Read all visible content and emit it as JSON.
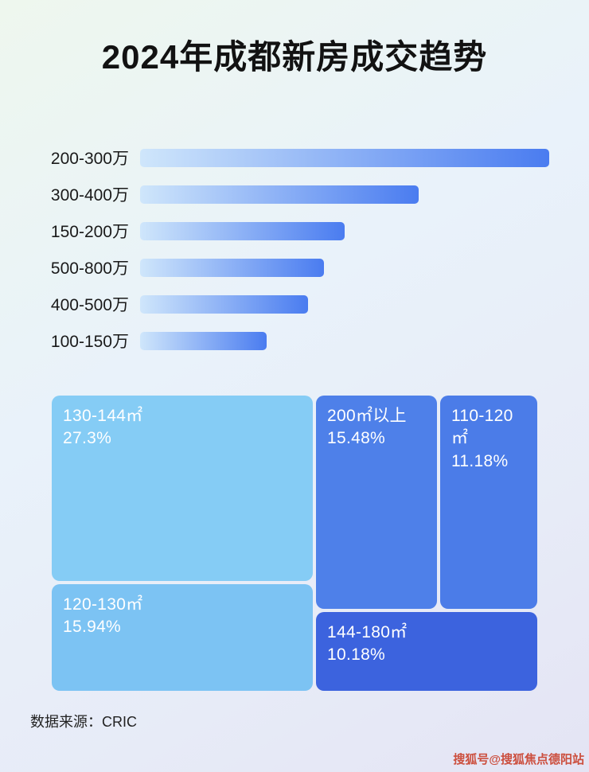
{
  "page": {
    "title": "2024年成都新房成交趋势",
    "source": "数据来源：CRIC",
    "watermark": "搜狐号@搜狐焦点德阳站"
  },
  "colors": {
    "title_text": "#121212",
    "bar_gradient_start": "#cfe6fb",
    "bar_gradient_end": "#4a7cf0",
    "watermark_red": "#cc4f3e"
  },
  "chart_data": [
    {
      "type": "bar",
      "orientation": "horizontal",
      "title": "2024年成都新房成交趋势",
      "xlabel": "",
      "ylabel": "",
      "axis_shown": false,
      "grid": false,
      "categories": [
        "200-300万",
        "300-400万",
        "150-200万",
        "500-800万",
        "400-500万",
        "100-150万"
      ],
      "values": [
        100,
        68,
        50,
        45,
        41,
        31
      ],
      "value_unit": "relative bar length (no axis labels shown)",
      "bar_gradient": [
        "#cfe6fb",
        "#4a7cf0"
      ]
    },
    {
      "type": "treemap",
      "title": "",
      "legend": false,
      "items": [
        {
          "label": "130-144㎡",
          "value": 27.3,
          "display": "27.3%",
          "color": "#85ccf5"
        },
        {
          "label": "200㎡以上",
          "value": 15.48,
          "display": "15.48%",
          "color": "#4e80e9"
        },
        {
          "label": "110-120㎡",
          "value": 11.18,
          "display": "11.18%",
          "color": "#4b7ce8"
        },
        {
          "label": "120-130㎡",
          "value": 15.94,
          "display": "15.94%",
          "color": "#7cc3f3"
        },
        {
          "label": "144-180㎡",
          "value": 10.18,
          "display": "10.18%",
          "color": "#3c63de"
        }
      ]
    }
  ]
}
